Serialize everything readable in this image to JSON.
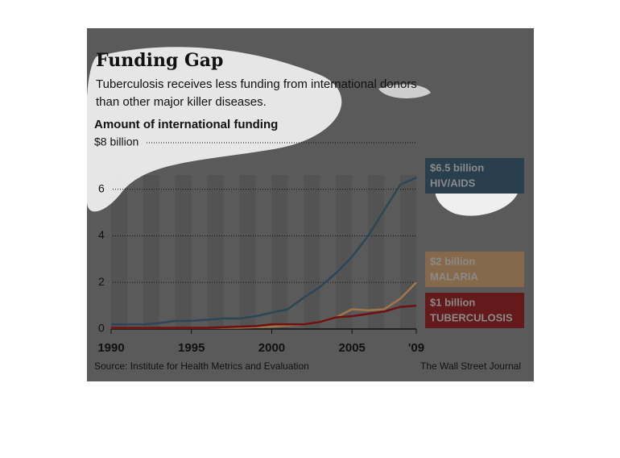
{
  "chart_data": {
    "type": "line",
    "title": "Funding Gap",
    "subtitle_lines": [
      "Tuberculosis receives less funding from international donors",
      "than other major killer diseases."
    ],
    "y_label": "Amount of international funding",
    "source": "Source: Institute for Health Metrics and Evaluation",
    "credit": "The Wall Street Journal",
    "x": [
      1990,
      1991,
      1992,
      1993,
      1994,
      1995,
      1996,
      1997,
      1998,
      1999,
      2000,
      2001,
      2002,
      2003,
      2004,
      2005,
      2006,
      2007,
      2008,
      2009
    ],
    "series": [
      {
        "name": "HIV/AIDS",
        "color": "#2b4657",
        "box_color": "#2a3f4e",
        "end_label": "$6.5 billion",
        "values": [
          0.2,
          0.2,
          0.2,
          0.25,
          0.35,
          0.35,
          0.4,
          0.45,
          0.45,
          0.55,
          0.7,
          0.85,
          1.35,
          1.8,
          2.4,
          3.1,
          4.0,
          5.1,
          6.2,
          6.5
        ]
      },
      {
        "name": "MALARIA",
        "color": "#a0764a",
        "box_color": "#86684a",
        "end_label": "$2 billion",
        "values": [
          0.05,
          0.05,
          0.05,
          0.05,
          0.05,
          0.05,
          0.05,
          0.05,
          0.05,
          0.08,
          0.1,
          0.15,
          0.2,
          0.3,
          0.5,
          0.85,
          0.8,
          0.85,
          1.3,
          2.0
        ]
      },
      {
        "name": "TUBERCULOSIS",
        "color": "#701010",
        "box_color": "#641a1a",
        "end_label": "$1 billion",
        "values": [
          0.05,
          0.05,
          0.05,
          0.05,
          0.05,
          0.05,
          0.05,
          0.08,
          0.1,
          0.12,
          0.2,
          0.2,
          0.2,
          0.3,
          0.5,
          0.55,
          0.65,
          0.75,
          0.95,
          1.0
        ]
      }
    ],
    "xlim": [
      1990,
      2009
    ],
    "xticks": [
      1990,
      1995,
      2000,
      2005,
      {
        "value": 2009,
        "label": "'09"
      }
    ],
    "ylim": [
      0,
      8
    ],
    "yticks": [
      0,
      2,
      4,
      6,
      {
        "value": 8,
        "label": "$8 billion"
      }
    ],
    "grid": true
  }
}
